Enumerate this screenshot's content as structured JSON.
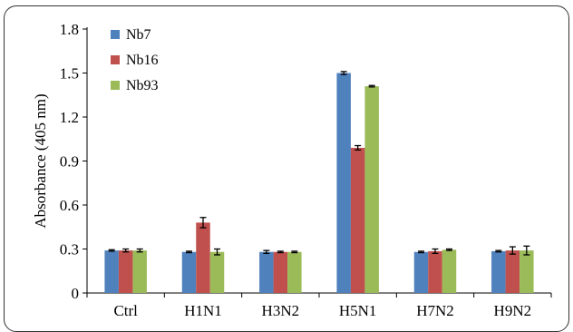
{
  "chart_data": {
    "type": "bar",
    "title": "",
    "xlabel": "",
    "ylabel": "Absorbance (405 nm)",
    "ylim": [
      0,
      1.8
    ],
    "yticks": [
      "0",
      "0.3",
      "0.6",
      "0.9",
      "1.2",
      "1.5",
      "1.8"
    ],
    "grid": false,
    "legend_position": "top-left",
    "categories": [
      "Ctrl",
      "H1N1",
      "H3N2",
      "H5N1",
      "H7N2",
      "H9N2"
    ],
    "series": [
      {
        "name": "Nb7",
        "color": "#4F81BD",
        "values": [
          0.29,
          0.28,
          0.28,
          1.5,
          0.28,
          0.285
        ],
        "errors": [
          0.005,
          0.005,
          0.01,
          0.01,
          0.005,
          0.005
        ]
      },
      {
        "name": "Nb16",
        "color": "#C0504D",
        "values": [
          0.29,
          0.48,
          0.28,
          0.99,
          0.285,
          0.29
        ],
        "errors": [
          0.01,
          0.035,
          0.005,
          0.015,
          0.015,
          0.025
        ]
      },
      {
        "name": "Nb93",
        "color": "#9BBB59",
        "values": [
          0.29,
          0.28,
          0.28,
          1.41,
          0.295,
          0.29
        ],
        "errors": [
          0.01,
          0.02,
          0.005,
          0.005,
          0.005,
          0.03
        ]
      }
    ]
  }
}
